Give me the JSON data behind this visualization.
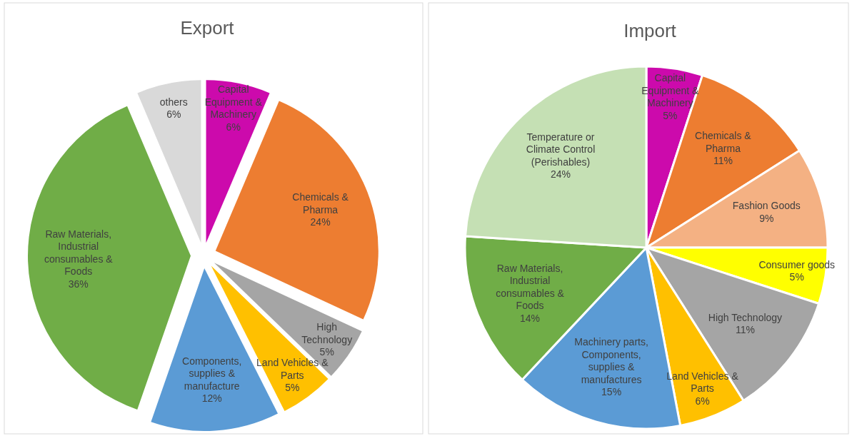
{
  "chart_data": [
    {
      "type": "pie",
      "title": "Export",
      "categories": [
        "Capital Equipment & Machinery",
        "Chemicals & Pharma",
        "High Technology",
        "Land Vehicles & Parts",
        "Components, supplies & manufacture",
        "Raw Materials, Industrial consumables & Foods",
        "others"
      ],
      "values": [
        6,
        24,
        5,
        5,
        12,
        36,
        6
      ],
      "value_labels": [
        "6%",
        "24%",
        "5%",
        "5%",
        "12%",
        "36%",
        "6%"
      ],
      "colors": [
        "#cc0aac",
        "#ed7d31",
        "#a5a5a5",
        "#ffc000",
        "#5b9bd5",
        "#70ad47",
        "#d9d9d9"
      ]
    },
    {
      "type": "pie",
      "title": "Import",
      "categories": [
        "Capital Equipment & Machinery",
        "Chemicals & Pharma",
        "Fashion Goods",
        "Consumer goods",
        "High Technology",
        "Land Vehicles & Parts",
        "Machinery parts, Components, supplies & manufactures",
        "Raw Materials, Industrial consumables & Foods",
        "Temperature or Climate Control (Perishables)"
      ],
      "values": [
        5,
        11,
        9,
        5,
        11,
        6,
        15,
        14,
        24
      ],
      "value_labels": [
        "5%",
        "11%",
        "9%",
        "5%",
        "11%",
        "6%",
        "15%",
        "14%",
        "24%"
      ],
      "colors": [
        "#cc0aac",
        "#ed7d31",
        "#f4b183",
        "#ffff00",
        "#a5a5a5",
        "#ffc000",
        "#5b9bd5",
        "#70ad47",
        "#c5e0b4"
      ]
    }
  ]
}
